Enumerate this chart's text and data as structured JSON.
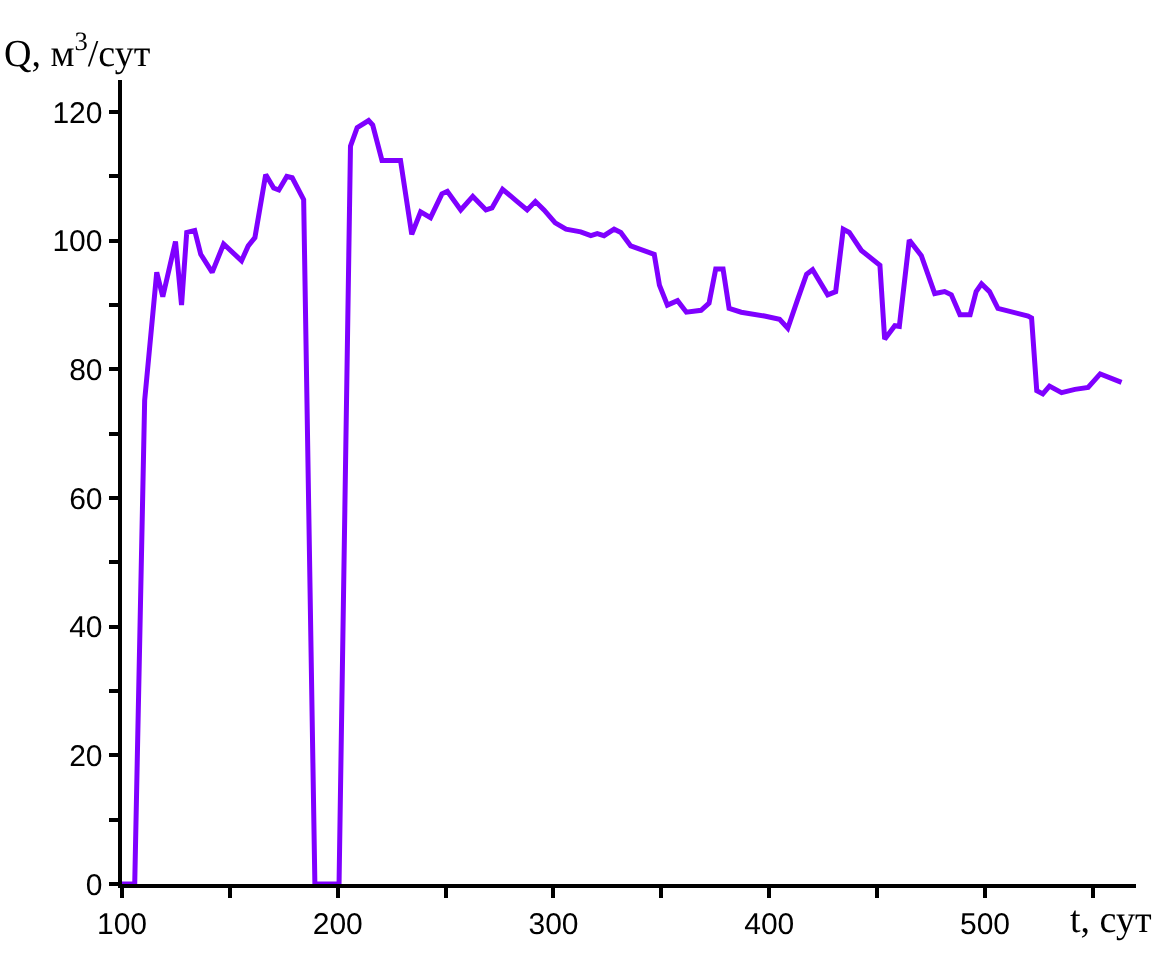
{
  "chart_data": {
    "type": "line",
    "xlabel": "t, сут",
    "ylabel": "Q, м$^{3}$/сут",
    "x": [
      100,
      105.9,
      110.5,
      116.1,
      118.9,
      124.8,
      127.6,
      130.0,
      133.7,
      136.5,
      141.8,
      147.1,
      155.4,
      158.5,
      161.6,
      166.6,
      170.3,
      172.7,
      176.4,
      178.9,
      184.2,
      189.4,
      200.6,
      205.9,
      209.0,
      214.3,
      216.2,
      220.5,
      229.1,
      234.3,
      238.4,
      243.0,
      248.3,
      250.8,
      257.0,
      262.6,
      268.7,
      271.5,
      276.4,
      283.2,
      287.8,
      291.6,
      295.6,
      300.8,
      305.8,
      312.6,
      317.3,
      320.3,
      323.4,
      328.1,
      331.2,
      335.8,
      346.7,
      349.1,
      352.8,
      357.5,
      361.6,
      368.4,
      372.1,
      375.2,
      378.6,
      381.4,
      387.0,
      397.8,
      404.8,
      408.6,
      413.3,
      417.3,
      420.1,
      427.1,
      430.8,
      434.3,
      437.1,
      442.7,
      451.3,
      453.5,
      458.2,
      460.3,
      464.9,
      470.5,
      476.7,
      481.3,
      484.4,
      488.4,
      493.1,
      495.9,
      498.4,
      502.1,
      506.0,
      520.0,
      521.6,
      524.0,
      526.8,
      529.9,
      535.5,
      541.7,
      547.8,
      553.4,
      563.3
    ],
    "series": [
      {
        "color": "#7f00ff",
        "values": [
          0,
          0,
          75.2,
          95.1,
          91.3,
          99.9,
          90.0,
          101.3,
          101.6,
          97.9,
          95.1,
          99.5,
          96.9,
          99.2,
          100.5,
          110.3,
          108.2,
          107.9,
          110.0,
          109.8,
          106.4,
          0,
          0,
          114.7,
          117.6,
          118.7,
          118.0,
          112.5,
          112.5,
          101.0,
          104.5,
          103.6,
          107.3,
          107.7,
          104.8,
          106.9,
          104.8,
          105.1,
          108.0,
          106.1,
          104.8,
          106.1,
          104.8,
          102.8,
          101.8,
          101.4,
          100.8,
          101.1,
          100.8,
          101.8,
          101.3,
          99.2,
          97.9,
          93.1,
          90.0,
          90.7,
          88.9,
          89.2,
          90.3,
          95.6,
          95.6,
          89.5,
          88.9,
          88.3,
          87.8,
          86.4,
          91.0,
          94.8,
          95.5,
          91.6,
          92.1,
          101.8,
          101.3,
          98.5,
          96.2,
          84.7,
          86.8,
          86.7,
          100.1,
          97.7,
          91.8,
          92.1,
          91.6,
          88.5,
          88.5,
          92.1,
          93.3,
          92.1,
          89.5,
          88.3,
          88.0,
          76.7,
          76.2,
          77.4,
          76.4,
          76.9,
          77.2,
          79.3,
          78.0
        ]
      }
    ],
    "xlim": [
      100,
      570
    ],
    "ylim": [
      0,
      125
    ],
    "xticks": [
      100,
      {
        "value": 150,
        "label": null
      },
      200,
      {
        "value": 250,
        "label": null
      },
      300,
      {
        "value": 350,
        "label": null
      },
      400,
      {
        "value": 450,
        "label": null
      },
      500,
      {
        "value": 550,
        "label": null
      }
    ],
    "yticks": [
      0,
      {
        "value": 10,
        "label": null
      },
      20,
      {
        "value": 30,
        "label": null
      },
      40,
      {
        "value": 50,
        "label": null
      },
      60,
      {
        "value": 70,
        "label": null
      },
      80,
      {
        "value": 90,
        "label": null
      },
      100,
      {
        "value": 110,
        "label": null
      },
      120
    ],
    "marker": "none",
    "line_style": "solid"
  }
}
